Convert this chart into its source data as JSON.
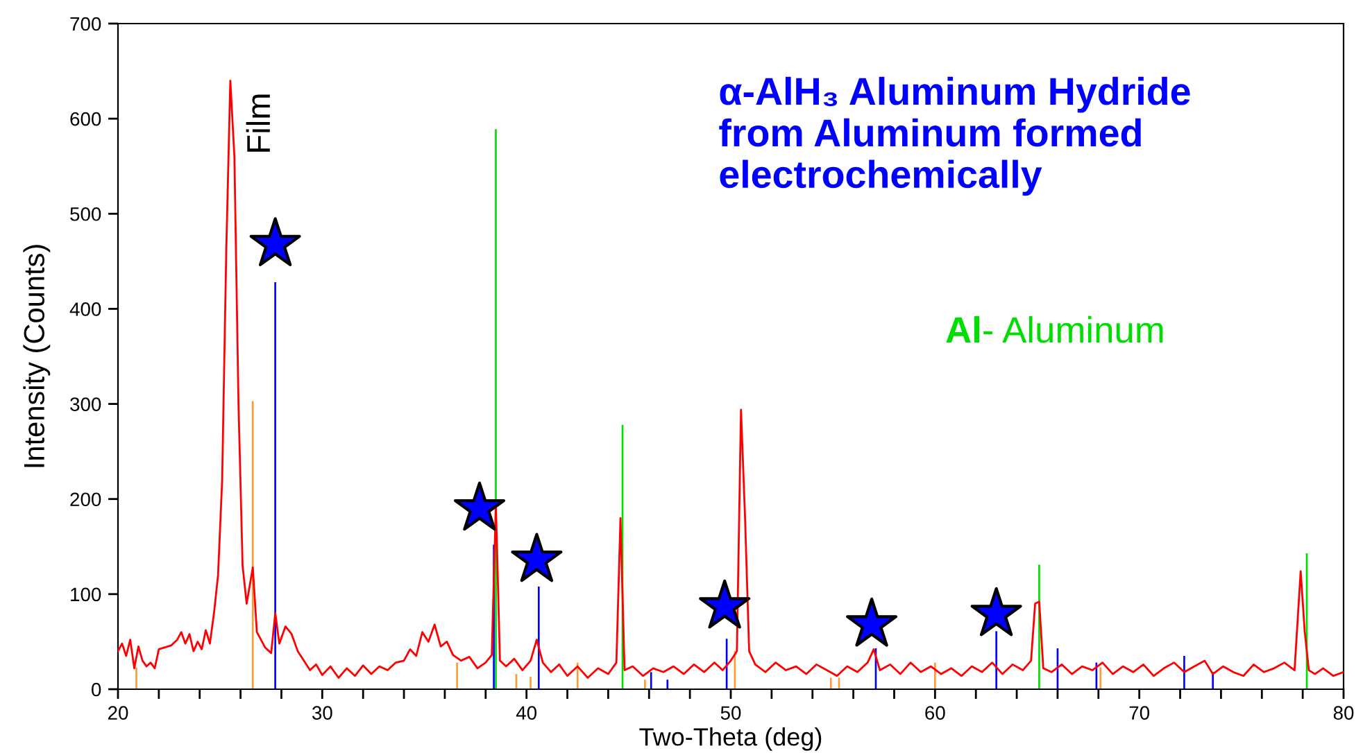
{
  "chart_data": {
    "type": "line",
    "title": "α-AlH₃ Aluminum Hydride\nfrom Aluminum formed\nelectrochemically",
    "xlabel": "Two-Theta (deg)",
    "ylabel": "Intensity (Counts)",
    "xlim": [
      20,
      80
    ],
    "ylim": [
      0,
      700
    ],
    "xticks": [
      20,
      {
        "value": 22,
        "label": null
      },
      {
        "value": 24,
        "label": null
      },
      {
        "value": 26,
        "label": null
      },
      {
        "value": 28,
        "label": null
      },
      30,
      {
        "value": 32,
        "label": null
      },
      {
        "value": 34,
        "label": null
      },
      {
        "value": 36,
        "label": null
      },
      {
        "value": 38,
        "label": null
      },
      40,
      {
        "value": 42,
        "label": null
      },
      {
        "value": 44,
        "label": null
      },
      {
        "value": 46,
        "label": null
      },
      {
        "value": 48,
        "label": null
      },
      50,
      {
        "value": 52,
        "label": null
      },
      {
        "value": 54,
        "label": null
      },
      {
        "value": 56,
        "label": null
      },
      {
        "value": 58,
        "label": null
      },
      60,
      {
        "value": 62,
        "label": null
      },
      {
        "value": 64,
        "label": null
      },
      {
        "value": 66,
        "label": null
      },
      {
        "value": 68,
        "label": null
      },
      70,
      {
        "value": 72,
        "label": null
      },
      {
        "value": 74,
        "label": null
      },
      {
        "value": 76,
        "label": null
      },
      {
        "value": 78,
        "label": null
      },
      80
    ],
    "yticks": [
      0,
      100,
      200,
      300,
      400,
      500,
      600,
      700
    ],
    "grid": false,
    "legend": false,
    "annotations": [
      "Film"
    ],
    "series": [
      {
        "type": "bar",
        "color": "#ff9933",
        "x": [
          20.9,
          26.6,
          36.6,
          39.5,
          40.2,
          42.5,
          45.8,
          50.2,
          54.9,
          55.3,
          60.0,
          68.1
        ],
        "values": [
          23,
          303,
          28,
          16,
          13,
          28,
          10,
          40,
          12,
          12,
          28,
          23
        ]
      },
      {
        "type": "bar",
        "color": "#0000ff",
        "x": [
          27.7,
          38.4,
          40.6,
          46.1,
          46.9,
          49.8,
          57.1,
          63.0,
          66.0,
          67.9,
          72.2,
          73.6
        ],
        "values": [
          428,
          152,
          108,
          18,
          10,
          53,
          43,
          61,
          43,
          28,
          35,
          18
        ]
      },
      {
        "type": "bar",
        "color": "#00dd00",
        "name": "Al- Aluminum",
        "x": [
          38.5,
          44.7,
          65.1,
          78.2
        ],
        "values": [
          589,
          278,
          131,
          143
        ]
      },
      {
        "color": "#ff0000",
        "line_style": "solid",
        "marker": "none",
        "x": [
          20.0,
          20.2,
          20.4,
          20.6,
          20.8,
          21.0,
          21.2,
          21.4,
          21.6,
          21.8,
          22.0,
          22.3,
          22.6,
          22.9,
          23.1,
          23.3,
          23.5,
          23.7,
          23.9,
          24.1,
          24.3,
          24.5,
          24.7,
          24.9,
          25.1,
          25.3,
          25.5,
          25.7,
          25.9,
          26.1,
          26.3,
          26.6,
          26.8,
          27.0,
          27.2,
          27.5,
          27.7,
          27.9,
          28.2,
          28.5,
          28.8,
          29.1,
          29.4,
          29.7,
          30.0,
          30.4,
          30.8,
          31.2,
          31.6,
          32.0,
          32.4,
          32.8,
          33.2,
          33.6,
          34.0,
          34.3,
          34.6,
          34.9,
          35.2,
          35.5,
          35.8,
          36.1,
          36.4,
          36.8,
          37.2,
          37.6,
          38.0,
          38.3,
          38.5,
          38.7,
          39.0,
          39.4,
          39.8,
          40.2,
          40.5,
          40.8,
          41.2,
          41.6,
          42.0,
          42.5,
          43.0,
          43.5,
          44.0,
          44.4,
          44.6,
          44.8,
          45.2,
          45.7,
          46.2,
          46.7,
          47.2,
          47.7,
          48.2,
          48.7,
          49.2,
          49.6,
          50.0,
          50.3,
          50.5,
          50.7,
          50.9,
          51.2,
          51.7,
          52.2,
          52.7,
          53.2,
          53.7,
          54.2,
          54.7,
          55.2,
          55.7,
          56.2,
          56.7,
          57.0,
          57.3,
          57.8,
          58.3,
          58.8,
          59.3,
          59.8,
          60.3,
          60.8,
          61.3,
          61.8,
          62.3,
          62.8,
          63.3,
          63.8,
          64.3,
          64.7,
          64.9,
          65.1,
          65.3,
          65.7,
          66.2,
          66.7,
          67.2,
          67.7,
          68.2,
          68.7,
          69.2,
          69.7,
          70.2,
          70.7,
          71.2,
          71.7,
          72.2,
          72.7,
          73.2,
          73.6,
          74.1,
          74.6,
          75.1,
          75.6,
          76.1,
          76.6,
          77.1,
          77.6,
          77.9,
          78.1,
          78.3,
          78.6,
          79.0,
          79.5,
          80.0
        ],
        "values": [
          40,
          48,
          35,
          52,
          22,
          45,
          30,
          24,
          28,
          22,
          42,
          44,
          46,
          52,
          60,
          48,
          58,
          40,
          50,
          42,
          62,
          48,
          80,
          120,
          220,
          460,
          640,
          560,
          300,
          130,
          90,
          128,
          60,
          52,
          44,
          38,
          80,
          48,
          66,
          58,
          40,
          30,
          20,
          26,
          15,
          24,
          12,
          22,
          14,
          25,
          16,
          24,
          20,
          28,
          30,
          42,
          35,
          60,
          50,
          68,
          45,
          50,
          36,
          30,
          34,
          22,
          28,
          36,
          195,
          30,
          24,
          32,
          20,
          30,
          52,
          28,
          18,
          26,
          14,
          24,
          12,
          22,
          16,
          28,
          180,
          20,
          24,
          14,
          22,
          18,
          24,
          16,
          26,
          18,
          28,
          20,
          30,
          40,
          294,
          180,
          40,
          26,
          18,
          28,
          20,
          24,
          16,
          26,
          20,
          14,
          24,
          18,
          28,
          42,
          20,
          26,
          16,
          28,
          18,
          24,
          16,
          22,
          14,
          24,
          18,
          28,
          16,
          26,
          20,
          30,
          90,
          92,
          22,
          18,
          26,
          16,
          24,
          20,
          28,
          16,
          24,
          18,
          26,
          14,
          22,
          28,
          18,
          24,
          30,
          16,
          24,
          18,
          14,
          26,
          18,
          22,
          28,
          20,
          124,
          60,
          20,
          16,
          22,
          14,
          18
        ]
      },
      {
        "type": "scatter",
        "color": "#0000ff",
        "marker": "star",
        "x": [
          27.7,
          37.7,
          40.5,
          49.7,
          56.9,
          63.0
        ],
        "values": [
          468,
          190,
          136,
          87,
          68,
          79
        ]
      }
    ]
  }
}
